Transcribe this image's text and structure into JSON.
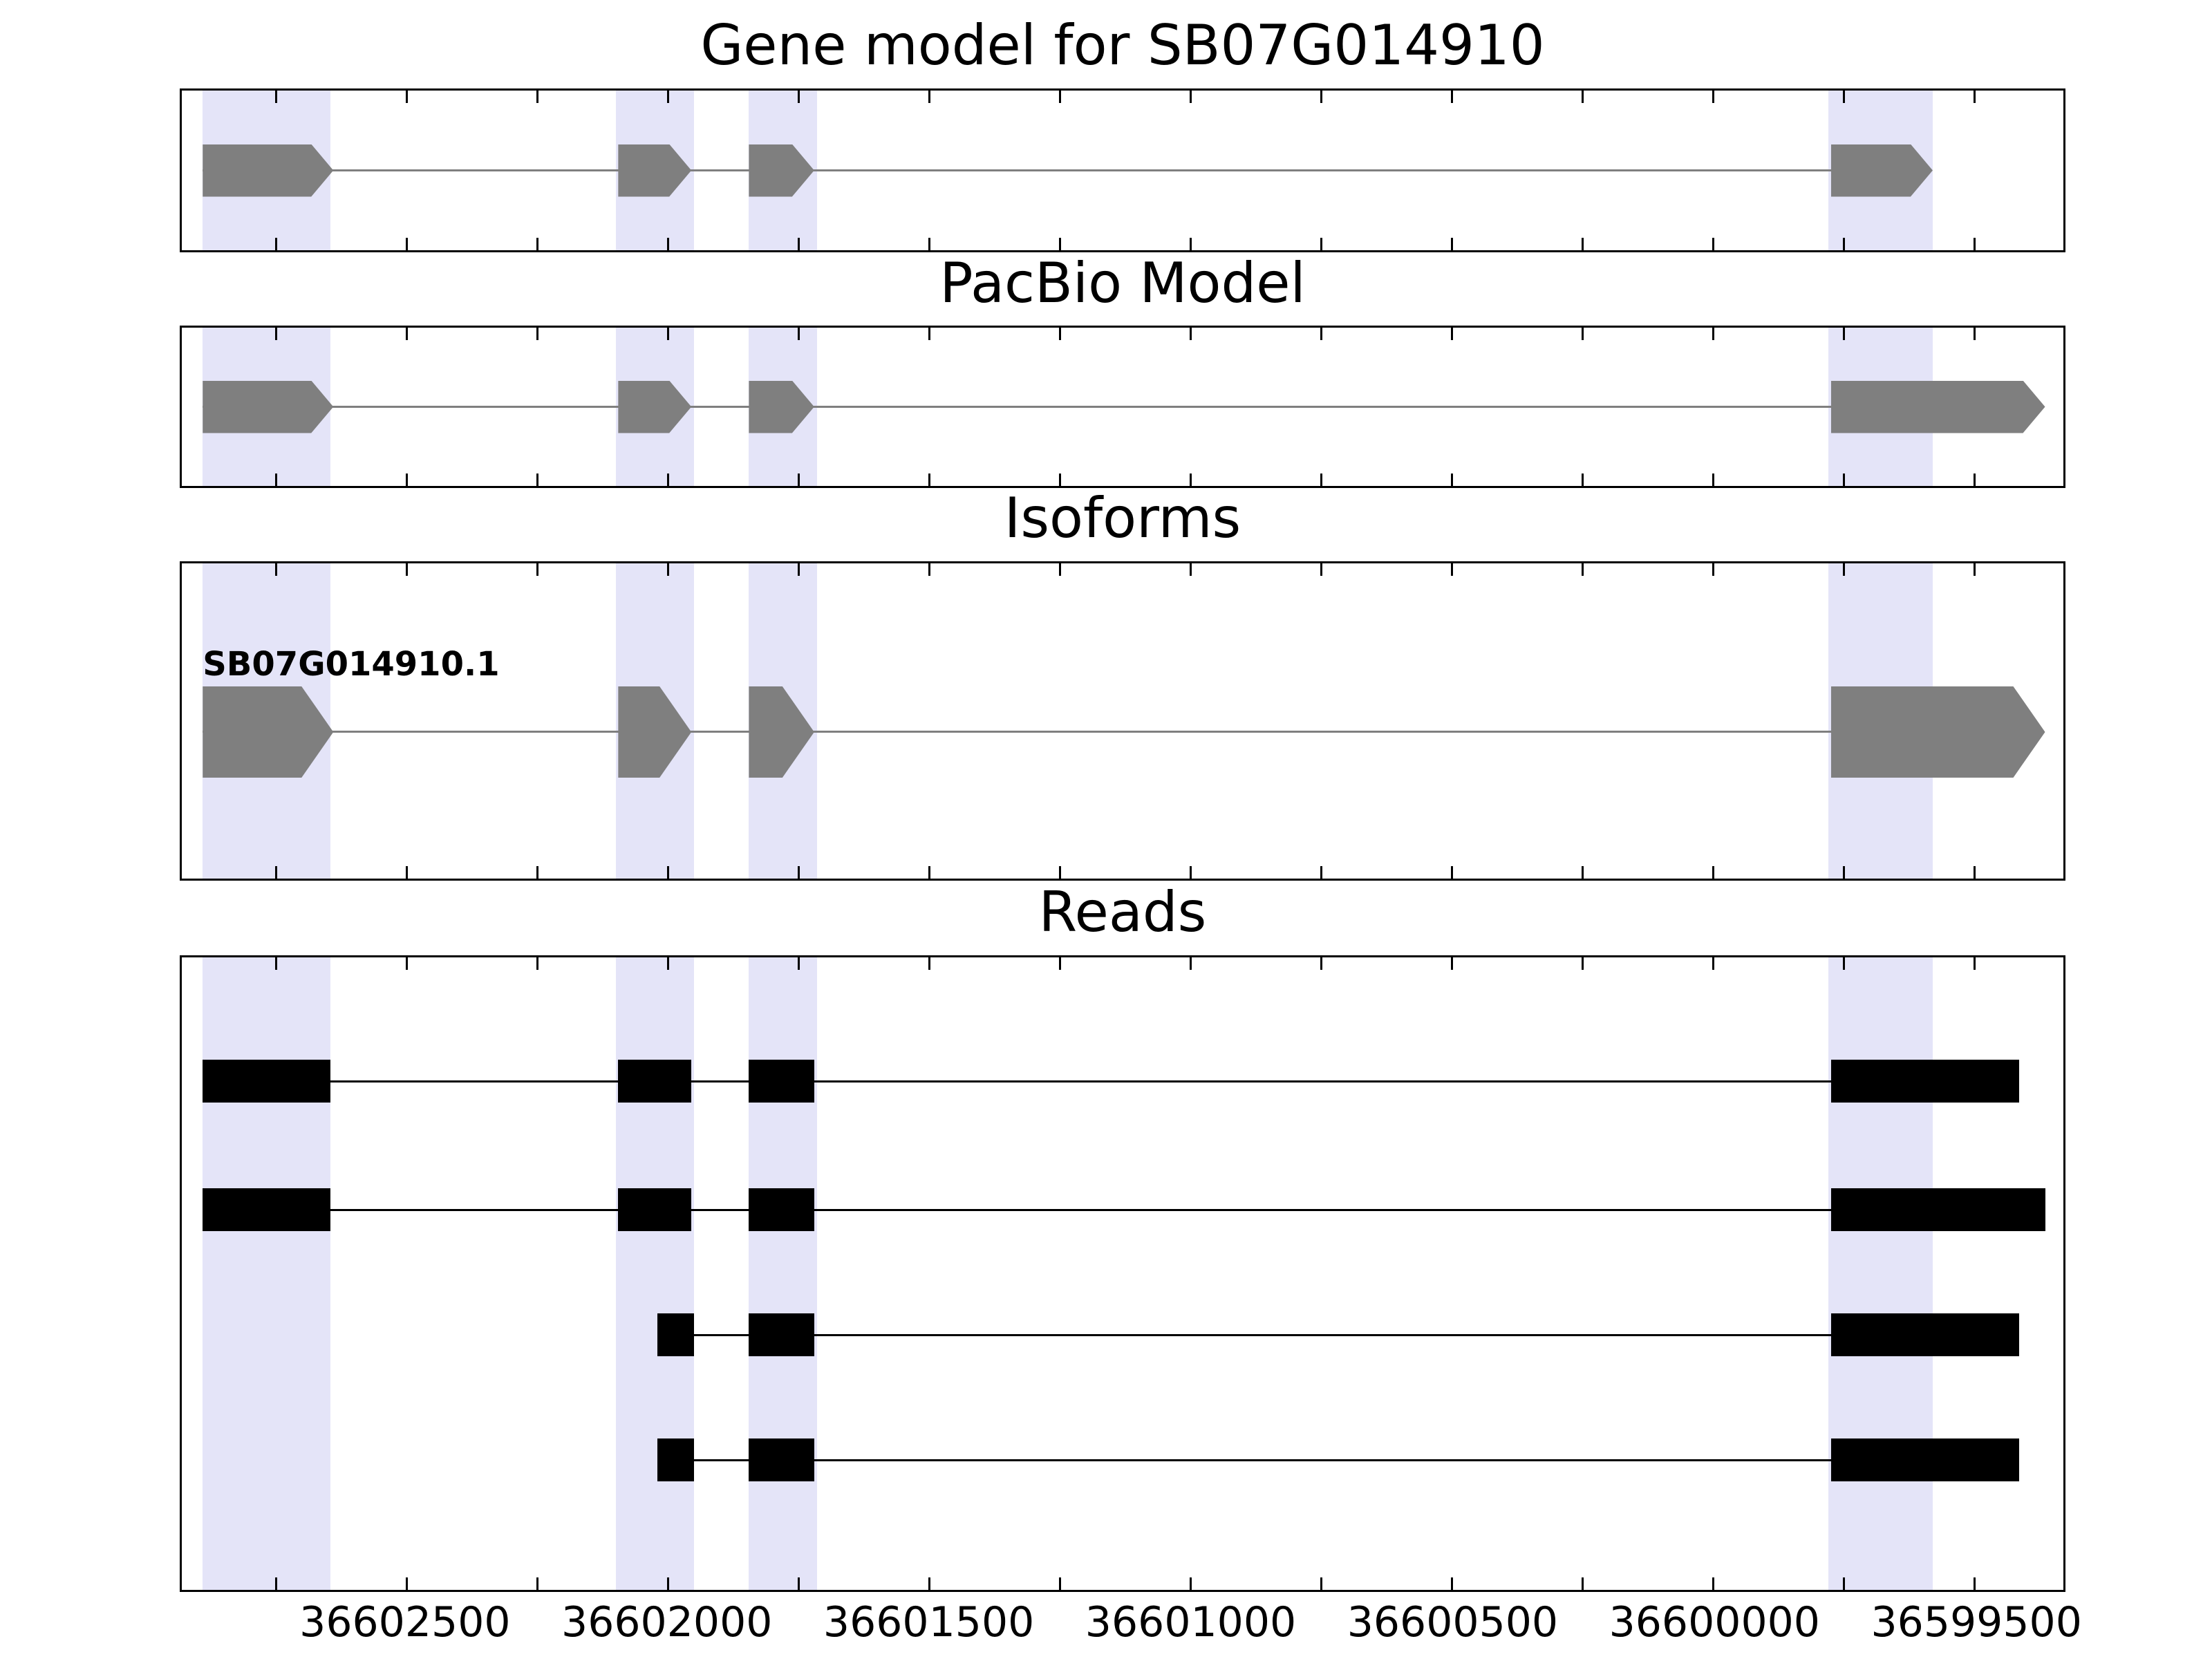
{
  "chart_data": {
    "type": "gene-structure-tracks",
    "background": "#ffffff",
    "axis": {
      "left_value": 36602930,
      "right_value": 36599330,
      "tick_interval": 250,
      "reversed": true
    },
    "highlight_color": "#e4e4f8",
    "highlights": [
      {
        "start": 36602890,
        "end": 36602645
      },
      {
        "start": 36602100,
        "end": 36601950
      },
      {
        "start": 36601845,
        "end": 36601715
      },
      {
        "start": 36599780,
        "end": 36599580
      }
    ],
    "panels": [
      {
        "name": "gene-model",
        "title": "Gene model for SB07G014910",
        "color": "#7f7f7f",
        "line_width": 3,
        "exon_height": 76,
        "arrow_tip": 32,
        "rows": [
          {
            "y": 0.5,
            "label": "",
            "line": {
              "start": 36602890,
              "end": 36599585
            },
            "exons": [
              {
                "start": 36602890,
                "end": 36602640,
                "arrow": true
              },
              {
                "start": 36602095,
                "end": 36601955,
                "arrow": true
              },
              {
                "start": 36601845,
                "end": 36601720,
                "arrow": true
              },
              {
                "start": 36599775,
                "end": 36599580,
                "arrow": true
              }
            ]
          }
        ]
      },
      {
        "name": "pacbio-model",
        "title": "PacBio Model",
        "color": "#7f7f7f",
        "line_width": 3,
        "exon_height": 76,
        "arrow_tip": 32,
        "rows": [
          {
            "y": 0.5,
            "label": "",
            "line": {
              "start": 36602890,
              "end": 36599375
            },
            "exons": [
              {
                "start": 36602890,
                "end": 36602640,
                "arrow": true
              },
              {
                "start": 36602095,
                "end": 36601955,
                "arrow": true
              },
              {
                "start": 36601845,
                "end": 36601720,
                "arrow": true
              },
              {
                "start": 36599775,
                "end": 36599365,
                "arrow": true
              }
            ]
          }
        ]
      },
      {
        "name": "isoforms",
        "title": "Isoforms",
        "color": "#7f7f7f",
        "line_width": 3,
        "exon_height": 132,
        "arrow_tip": 46,
        "rows": [
          {
            "y": 0.535,
            "label": "SB07G014910.1",
            "line": {
              "start": 36602890,
              "end": 36599375
            },
            "exons": [
              {
                "start": 36602890,
                "end": 36602640,
                "arrow": true
              },
              {
                "start": 36602095,
                "end": 36601955,
                "arrow": true
              },
              {
                "start": 36601845,
                "end": 36601720,
                "arrow": true
              },
              {
                "start": 36599775,
                "end": 36599365,
                "arrow": true
              }
            ]
          }
        ]
      },
      {
        "name": "reads",
        "title": "Reads",
        "color": "#000000",
        "line_width": 3,
        "exon_height": 62,
        "arrow_tip": 0,
        "rows": [
          {
            "y": 0.196,
            "label": "",
            "line": {
              "start": 36602890,
              "end": 36599415
            },
            "exons": [
              {
                "start": 36602890,
                "end": 36602645,
                "arrow": false
              },
              {
                "start": 36602095,
                "end": 36601955,
                "arrow": false
              },
              {
                "start": 36601845,
                "end": 36601720,
                "arrow": false
              },
              {
                "start": 36599775,
                "end": 36599415,
                "arrow": false
              }
            ]
          },
          {
            "y": 0.399,
            "label": "",
            "line": {
              "start": 36602890,
              "end": 36599365
            },
            "exons": [
              {
                "start": 36602890,
                "end": 36602645,
                "arrow": false
              },
              {
                "start": 36602095,
                "end": 36601955,
                "arrow": false
              },
              {
                "start": 36601845,
                "end": 36601720,
                "arrow": false
              },
              {
                "start": 36599775,
                "end": 36599365,
                "arrow": false
              }
            ]
          },
          {
            "y": 0.597,
            "label": "",
            "line": {
              "start": 36602020,
              "end": 36599415
            },
            "exons": [
              {
                "start": 36602020,
                "end": 36601950,
                "arrow": false
              },
              {
                "start": 36601845,
                "end": 36601720,
                "arrow": false
              },
              {
                "start": 36599775,
                "end": 36599415,
                "arrow": false
              }
            ]
          },
          {
            "y": 0.795,
            "label": "",
            "line": {
              "start": 36602020,
              "end": 36599415
            },
            "exons": [
              {
                "start": 36602020,
                "end": 36601950,
                "arrow": false
              },
              {
                "start": 36601845,
                "end": 36601720,
                "arrow": false
              },
              {
                "start": 36599775,
                "end": 36599415,
                "arrow": false
              }
            ]
          }
        ]
      }
    ],
    "xticks": [
      {
        "value": 36602500,
        "label": "36602500"
      },
      {
        "value": 36602000,
        "label": "36602000"
      },
      {
        "value": 36601500,
        "label": "36601500"
      },
      {
        "value": 36601000,
        "label": "36601000"
      },
      {
        "value": 36600500,
        "label": "36600500"
      },
      {
        "value": 36600000,
        "label": "36600000"
      },
      {
        "value": 36599500,
        "label": "36599500"
      }
    ]
  }
}
